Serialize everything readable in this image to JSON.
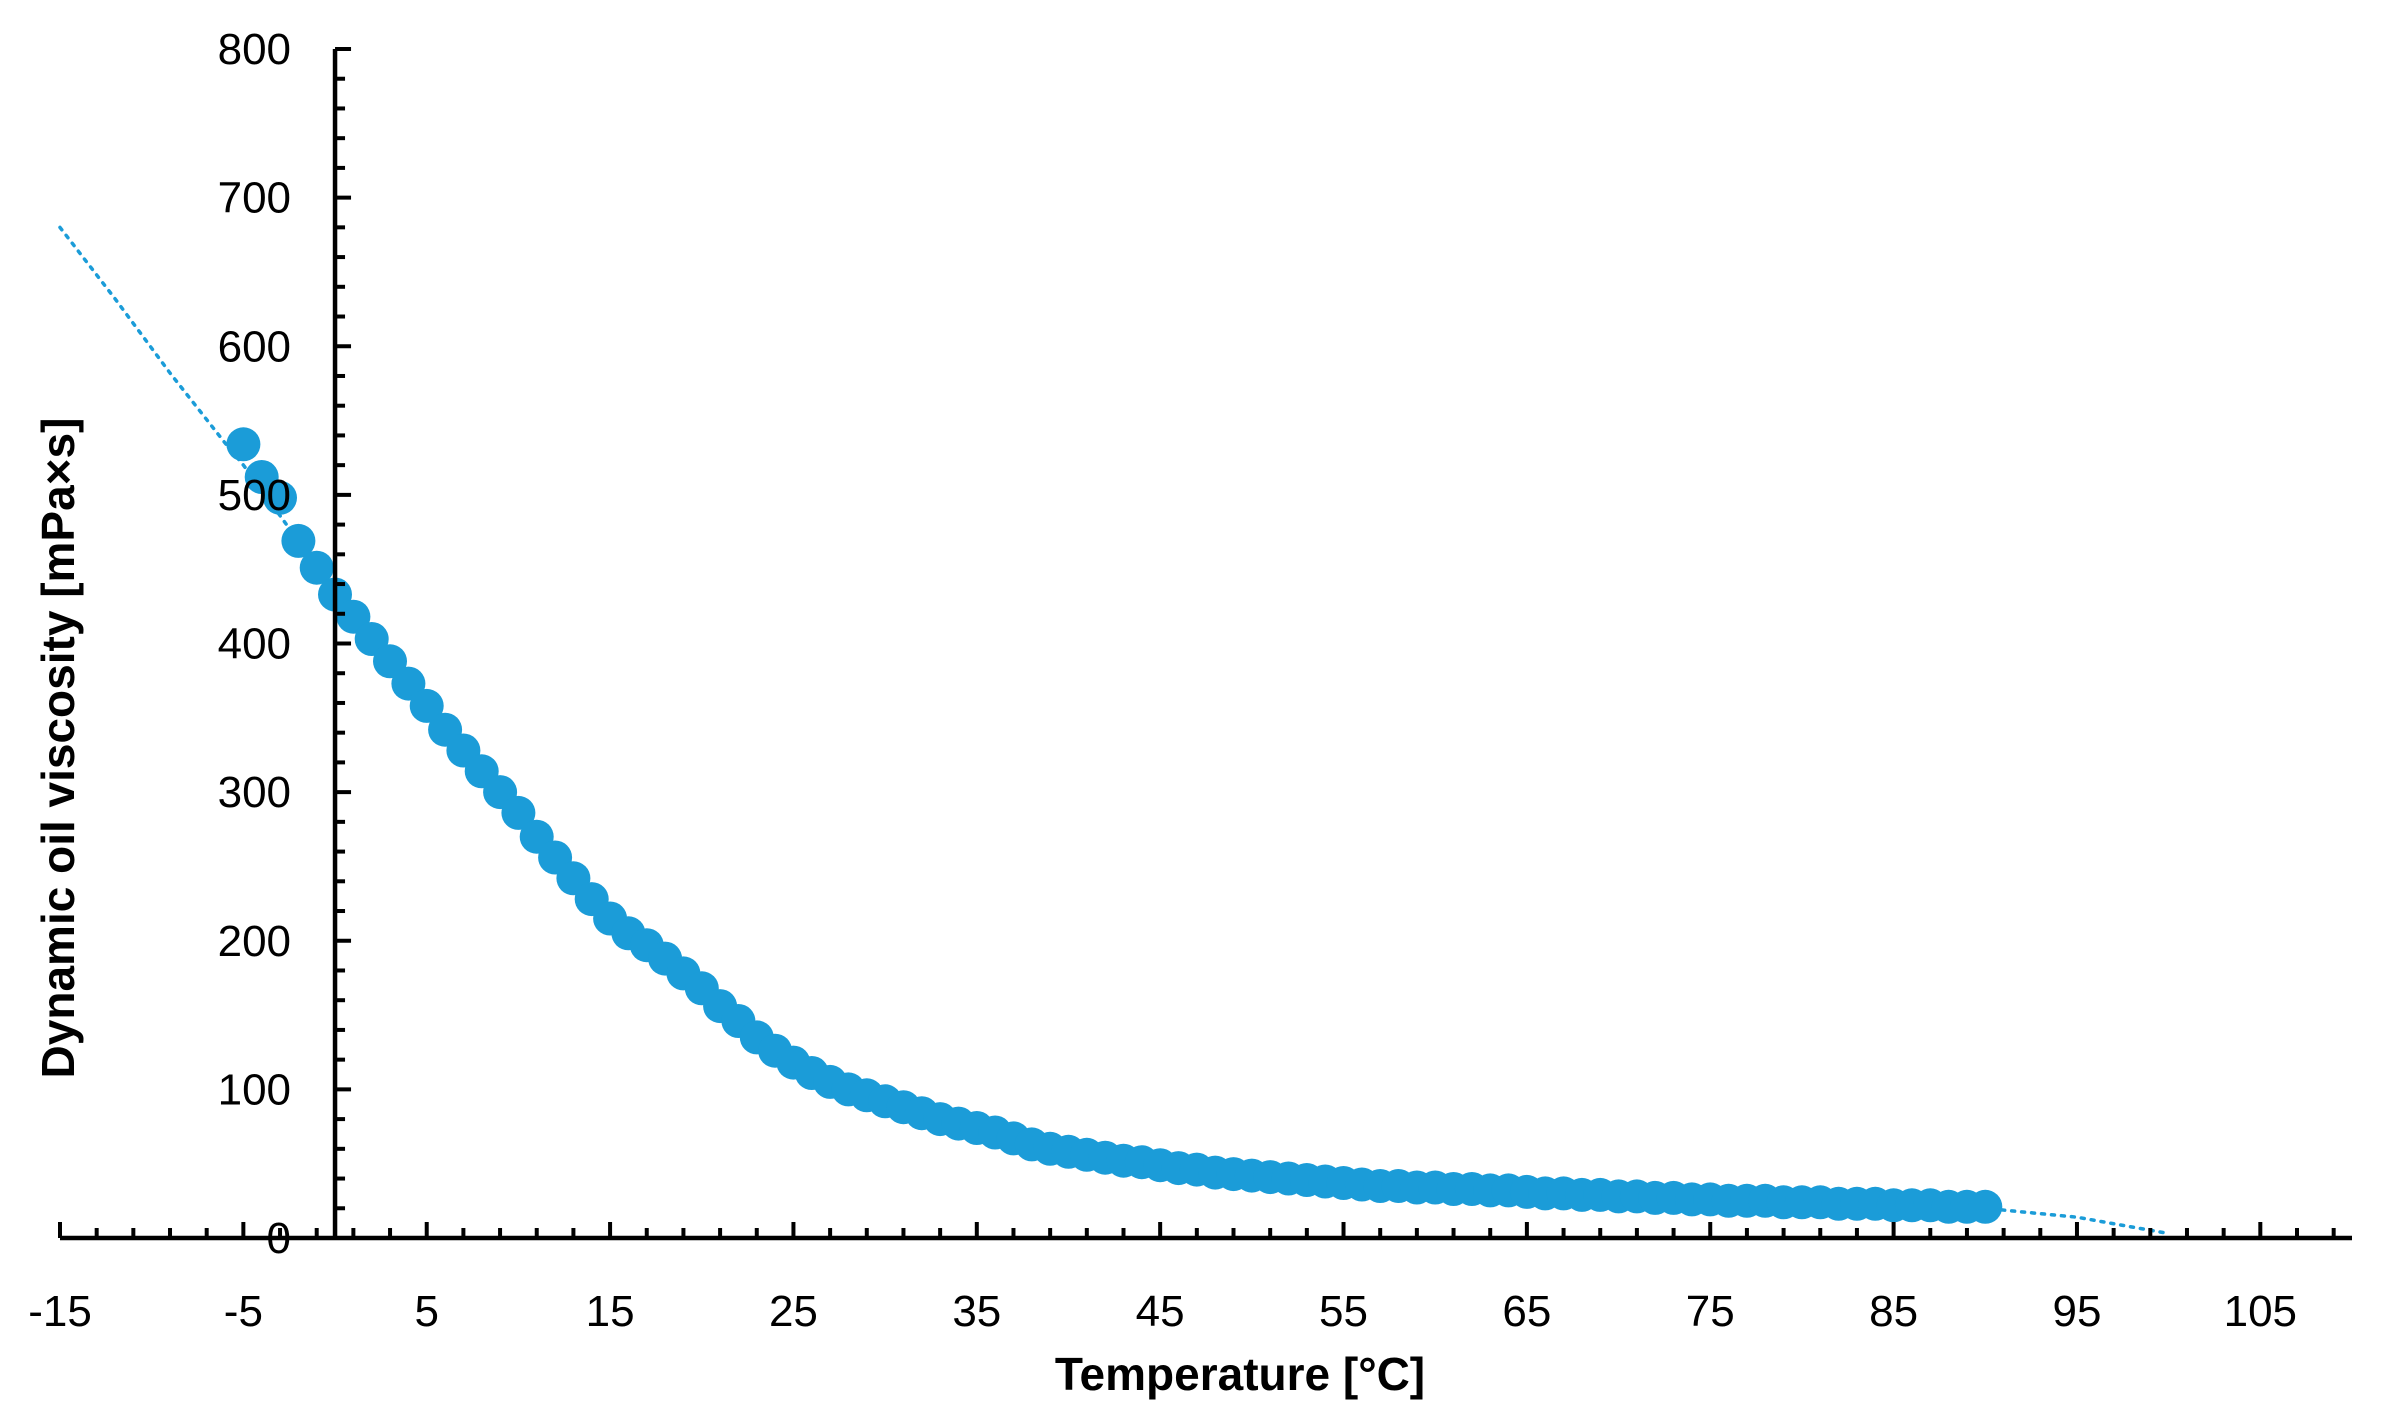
{
  "chart_data": {
    "type": "scatter",
    "title": "",
    "xlabel": "Temperature [°C]",
    "ylabel": "Dynamic oil viscosity [mPa×s]",
    "xlim": [
      -15,
      110
    ],
    "ylim": [
      0,
      800
    ],
    "x_ticks": [
      -15,
      -5,
      5,
      15,
      25,
      35,
      45,
      55,
      65,
      75,
      85,
      95,
      105
    ],
    "y_ticks": [
      0,
      100,
      200,
      300,
      400,
      500,
      600,
      700,
      800
    ],
    "grid": false,
    "legend": "none",
    "marker_color": "#1b9cd8",
    "trendline": {
      "style": "dotted",
      "color": "#1b9cd8",
      "x": [
        -15,
        -12,
        -9,
        -6,
        -5,
        0,
        5,
        15,
        25,
        35,
        45,
        55,
        65,
        75,
        85,
        90,
        95,
        100
      ],
      "y": [
        680,
        632,
        582,
        535,
        520,
        435,
        360,
        215,
        120,
        78,
        50,
        38,
        29,
        25,
        22,
        20,
        14,
        3
      ]
    },
    "x": [
      -5,
      -4,
      -3,
      -2,
      -1,
      0,
      1,
      2,
      3,
      4,
      5,
      6,
      7,
      8,
      9,
      10,
      11,
      12,
      13,
      14,
      15,
      16,
      17,
      18,
      19,
      20,
      21,
      22,
      23,
      24,
      25,
      26,
      27,
      28,
      29,
      30,
      31,
      32,
      33,
      34,
      35,
      36,
      37,
      38,
      39,
      40,
      41,
      42,
      43,
      44,
      45,
      46,
      47,
      48,
      49,
      50,
      51,
      52,
      53,
      54,
      55,
      56,
      57,
      58,
      59,
      60,
      61,
      62,
      63,
      64,
      65,
      66,
      67,
      68,
      69,
      70,
      71,
      72,
      73,
      74,
      75,
      76,
      77,
      78,
      79,
      80,
      81,
      82,
      83,
      84,
      85,
      86,
      87,
      88,
      89,
      90
    ],
    "y": [
      534,
      512,
      498,
      469,
      451,
      433,
      418,
      403,
      388,
      373,
      358,
      342,
      328,
      314,
      300,
      286,
      270,
      256,
      242,
      228,
      215,
      205,
      197,
      188,
      178,
      168,
      156,
      146,
      135,
      126,
      118,
      111,
      105,
      100,
      96,
      92,
      88,
      84,
      80,
      77,
      74,
      71,
      67,
      63,
      60,
      58,
      56,
      54,
      52,
      51,
      49,
      47,
      46,
      44,
      43,
      42,
      41,
      40,
      39,
      38,
      37,
      36,
      35,
      35,
      34,
      34,
      33,
      33,
      32,
      32,
      31,
      30,
      30,
      29,
      29,
      28,
      28,
      27,
      27,
      26,
      26,
      25,
      25,
      25,
      24,
      24,
      24,
      23,
      23,
      23,
      22,
      22,
      22,
      21,
      21,
      21
    ]
  }
}
